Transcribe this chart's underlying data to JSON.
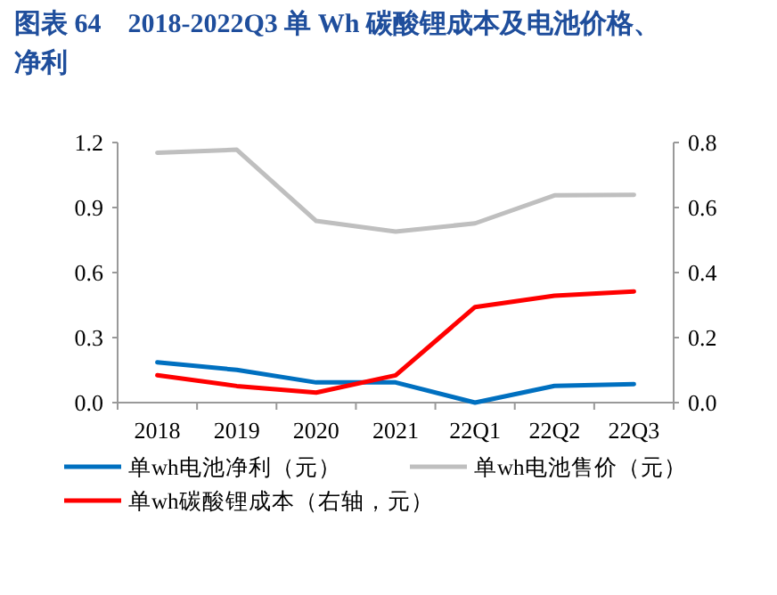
{
  "chart_data": {
    "type": "line",
    "title": "图表 64　2018-2022Q3 单 Wh 碳酸锂成本及电池价格、净利",
    "categories": [
      "2018",
      "2019",
      "2020",
      "2021",
      "22Q1",
      "22Q2",
      "22Q3"
    ],
    "series": [
      {
        "name": "单wh电池净利（元）",
        "color": "#0070c0",
        "values": [
          0.186,
          0.151,
          0.093,
          0.093,
          0.0,
          0.077,
          0.085
        ]
      },
      {
        "name": "单wh电池售价（元）",
        "color": "#bfbfbf",
        "values": [
          1.153,
          1.167,
          0.838,
          0.789,
          0.827,
          0.956,
          0.959
        ]
      },
      {
        "name": "单wh碳酸锂成本（右轴，元）",
        "color": "#ff0000",
        "axis": "y2",
        "values": [
          0.084,
          0.051,
          0.031,
          0.084,
          0.294,
          0.329,
          0.342
        ]
      }
    ],
    "ylim": [
      0,
      1.2
    ],
    "yticks": [
      {
        "value": 0,
        "label": "0.0"
      },
      {
        "value": 0.3,
        "label": "0.3"
      },
      {
        "value": 0.6,
        "label": "0.6"
      },
      {
        "value": 0.9,
        "label": "0.9"
      },
      {
        "value": 1.2,
        "label": "1.2"
      }
    ],
    "y2lim": [
      0,
      0.8
    ],
    "y2ticks": [
      {
        "value": 0,
        "label": "0.0"
      },
      {
        "value": 0.2,
        "label": "0.2"
      },
      {
        "value": 0.4,
        "label": "0.4"
      },
      {
        "value": 0.6,
        "label": "0.6"
      },
      {
        "value": 0.8,
        "label": "0.8"
      }
    ],
    "grid": false,
    "legend": "bottom",
    "marker": "none",
    "line_style": "solid"
  }
}
